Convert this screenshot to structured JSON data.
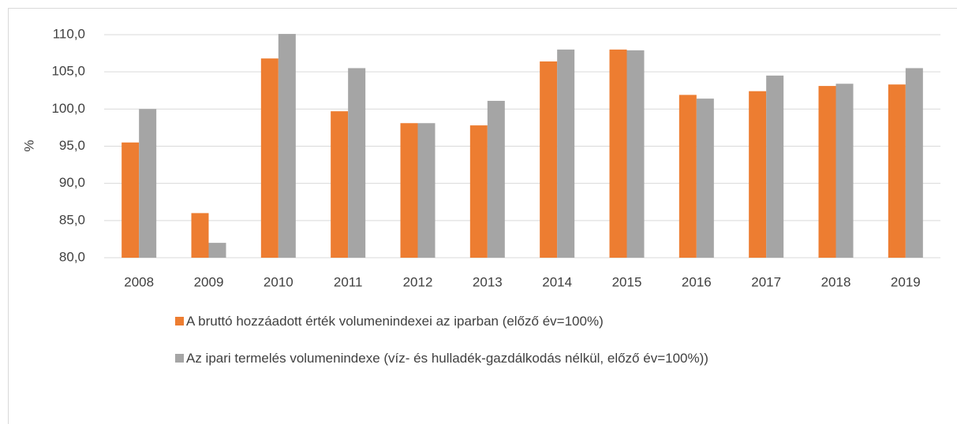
{
  "chart_data": {
    "type": "bar",
    "y_label": "%",
    "categories": [
      "2008",
      "2009",
      "2010",
      "2011",
      "2012",
      "2013",
      "2014",
      "2015",
      "2016",
      "2017",
      "2018",
      "2019"
    ],
    "series": [
      {
        "name": "A bruttó hozzáadott érték volumenindexei az iparban (előző év=100%)",
        "color": "#ed7d31",
        "values": [
          95.5,
          86.0,
          106.8,
          99.7,
          98.1,
          97.8,
          106.4,
          108.0,
          101.9,
          102.4,
          103.1,
          103.3
        ]
      },
      {
        "name": "Az ipari termelés volumenindexe (víz- és hulladék-gazdálkodás nélkül, előző év=100%))",
        "color": "#a5a5a5",
        "values": [
          100.0,
          82.0,
          110.1,
          105.5,
          98.1,
          101.1,
          108.0,
          107.9,
          101.4,
          104.5,
          103.4,
          105.5
        ]
      }
    ],
    "ylim": [
      80,
      110
    ],
    "yticks": [
      {
        "value": 80,
        "label": "80,0"
      },
      {
        "value": 85,
        "label": "85,0"
      },
      {
        "value": 90,
        "label": "90,0"
      },
      {
        "value": 95,
        "label": "95,0"
      },
      {
        "value": 100,
        "label": "100,0"
      },
      {
        "value": 105,
        "label": "105,0"
      },
      {
        "value": 110,
        "label": "110,0"
      }
    ],
    "grid": true
  }
}
